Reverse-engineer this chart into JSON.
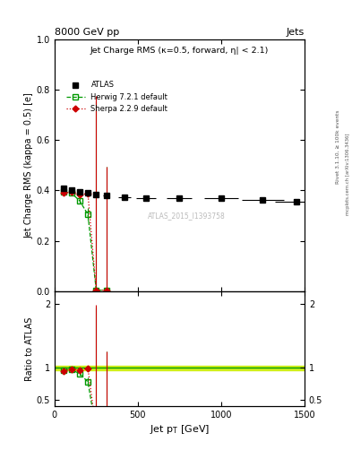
{
  "title_top": "8000 GeV pp",
  "title_right": "Jets",
  "plot_title": "Jet Charge RMS (κ=0.5, forward, η| < 2.1)",
  "ylabel_main": "Jet Charge RMS (kappa = 0.5) [e]",
  "ylabel_ratio": "Ratio to ATLAS",
  "xlabel": "Jet p_{T} [GeV]",
  "rivet_label": "Rivet 3.1.10, ≥ 100k events",
  "mcplots_label": "mcplots.cern.ch [arXiv:1306.3436]",
  "watermark": "ATLAS_2015_I1393758",
  "atlas_x": [
    55,
    100,
    150,
    200,
    250,
    310,
    420,
    550,
    750,
    1000,
    1250,
    1450
  ],
  "atlas_y": [
    0.41,
    0.4,
    0.395,
    0.39,
    0.385,
    0.38,
    0.375,
    0.37,
    0.37,
    0.37,
    0.362,
    0.355
  ],
  "atlas_xerr": [
    15,
    10,
    15,
    15,
    15,
    20,
    40,
    60,
    75,
    100,
    125,
    125
  ],
  "atlas_yerr": [
    0.008,
    0.006,
    0.006,
    0.006,
    0.006,
    0.007,
    0.0,
    0.0,
    0.0,
    0.0,
    0.0,
    0.0
  ],
  "herwig_x": [
    55,
    100,
    150,
    200,
    250,
    310
  ],
  "herwig_y": [
    0.395,
    0.39,
    0.36,
    0.305,
    0.005,
    0.005
  ],
  "herwig_yerr_up": [
    0.012,
    0.009,
    0.012,
    0.025,
    0.75,
    0.49
  ],
  "herwig_yerr_dn": [
    0.012,
    0.009,
    0.012,
    0.025,
    0.005,
    0.005
  ],
  "sherpa_x": [
    55,
    100,
    150,
    200,
    250,
    310
  ],
  "sherpa_y": [
    0.392,
    0.393,
    0.383,
    0.388,
    0.005,
    0.005
  ],
  "sherpa_yerr_up": [
    0.012,
    0.009,
    0.012,
    0.006,
    0.77,
    0.49
  ],
  "sherpa_yerr_dn": [
    0.012,
    0.009,
    0.012,
    0.006,
    0.005,
    0.005
  ],
  "herwig_color": "#009900",
  "sherpa_color": "#cc0000",
  "atlas_color": "#000000",
  "band_color": "#ccee00",
  "xlim": [
    0,
    1500
  ],
  "ylim_main": [
    0.0,
    1.0
  ],
  "ylim_ratio": [
    0.4,
    2.2
  ],
  "herwig_ratio_y": [
    0.963,
    0.975,
    0.912,
    0.782,
    0.013,
    0.013
  ],
  "herwig_ratio_yerr_up": [
    0.028,
    0.022,
    0.03,
    0.063,
    1.94,
    1.25
  ],
  "herwig_ratio_yerr_dn": [
    0.028,
    0.022,
    0.03,
    0.063,
    0.013,
    0.013
  ],
  "sherpa_ratio_y": [
    0.956,
    0.982,
    0.97,
    0.995,
    0.013,
    0.013
  ],
  "sherpa_ratio_yerr_up": [
    0.028,
    0.022,
    0.03,
    0.015,
    1.98,
    1.25
  ],
  "sherpa_ratio_yerr_dn": [
    0.028,
    0.022,
    0.03,
    0.015,
    0.013,
    0.013
  ]
}
